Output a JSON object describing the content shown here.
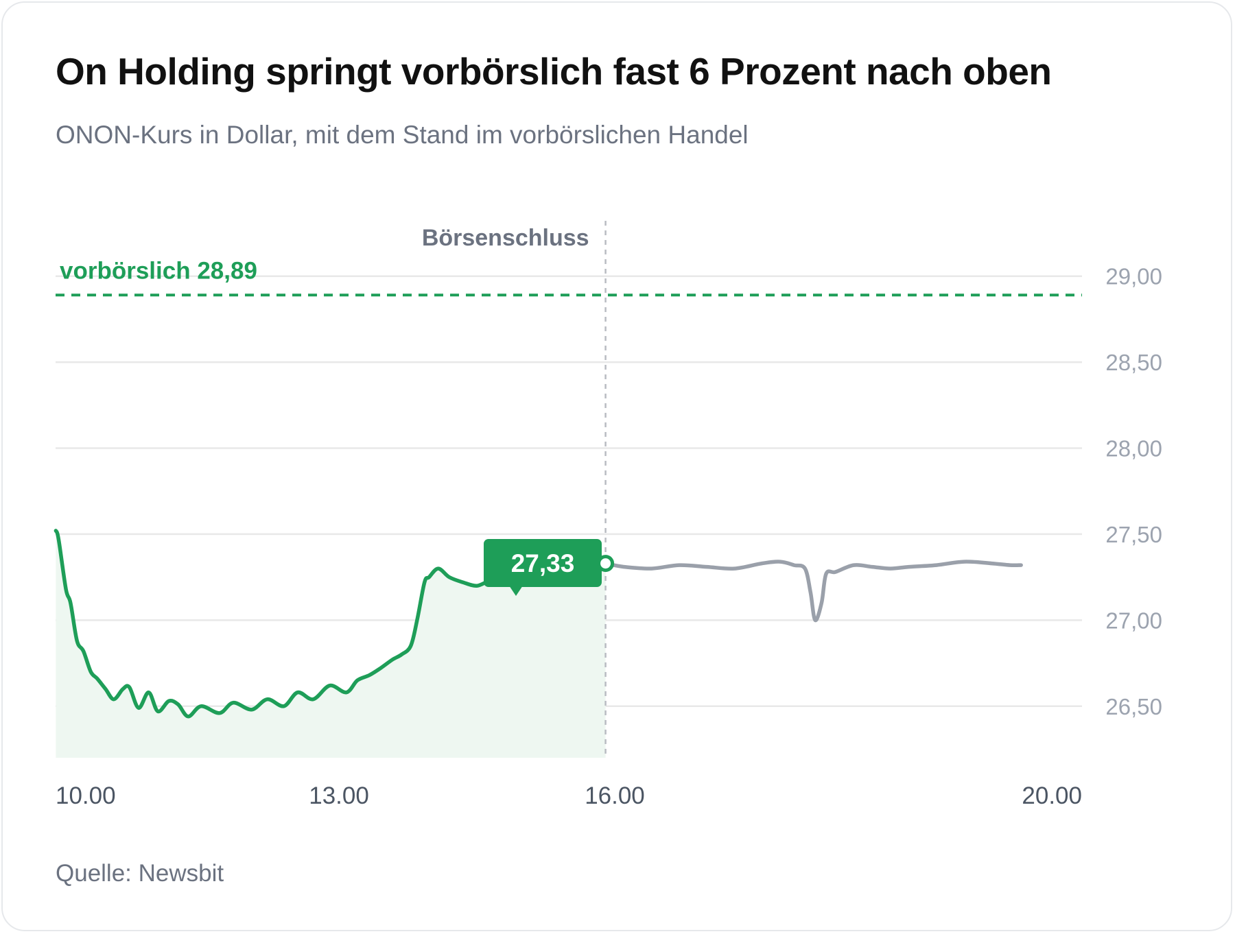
{
  "title": "On Holding springt vorbörslich fast 6 Prozent nach oben",
  "subtitle": "ONON-Kurs in Dollar, mit dem Stand im vorbörslichen Handel",
  "source": "Quelle: Newsbit",
  "colors": {
    "regular_session": "#1e9e58",
    "regular_fill": "#eef7f1",
    "after_hours": "#9aa0aa",
    "grid": "#e8e8e8",
    "close_marker": "#b9bcc2"
  },
  "chart_data": {
    "type": "line",
    "ylim": [
      26.2,
      29.25
    ],
    "xlim": [
      9.917,
      21.083
    ],
    "y_ticks": [
      {
        "value": 29.0,
        "label": "29,00"
      },
      {
        "value": 28.5,
        "label": "28,50"
      },
      {
        "value": 28.0,
        "label": "28,00"
      },
      {
        "value": 27.5,
        "label": "27,50"
      },
      {
        "value": 27.0,
        "label": "27,00"
      },
      {
        "value": 26.5,
        "label": "26,50"
      }
    ],
    "x_ticks": [
      {
        "value": 10.0,
        "label": "10.00"
      },
      {
        "value": 13.0,
        "label": "13.00"
      },
      {
        "value": 16.0,
        "label": "16.00"
      },
      {
        "value": 20.0,
        "label": "20.00"
      }
    ],
    "grid": true,
    "series": [
      {
        "points": [
          [
            9.92,
            27.52
          ],
          [
            9.95,
            27.47
          ],
          [
            10.03,
            27.18
          ],
          [
            10.08,
            27.1
          ],
          [
            10.15,
            26.88
          ],
          [
            10.22,
            26.82
          ],
          [
            10.3,
            26.7
          ],
          [
            10.37,
            26.66
          ],
          [
            10.46,
            26.6
          ],
          [
            10.55,
            26.54
          ],
          [
            10.65,
            26.6
          ],
          [
            10.72,
            26.61
          ],
          [
            10.82,
            26.49
          ],
          [
            10.93,
            26.58
          ],
          [
            11.03,
            26.47
          ],
          [
            11.15,
            26.53
          ],
          [
            11.25,
            26.51
          ],
          [
            11.36,
            26.44
          ],
          [
            11.5,
            26.5
          ],
          [
            11.7,
            26.46
          ],
          [
            11.85,
            26.52
          ],
          [
            12.05,
            26.48
          ],
          [
            12.22,
            26.54
          ],
          [
            12.4,
            26.5
          ],
          [
            12.55,
            26.58
          ],
          [
            12.72,
            26.54
          ],
          [
            12.9,
            26.62
          ],
          [
            13.08,
            26.58
          ],
          [
            13.2,
            26.65
          ],
          [
            13.33,
            26.68
          ],
          [
            13.45,
            26.72
          ],
          [
            13.58,
            26.77
          ],
          [
            13.68,
            26.8
          ],
          [
            13.78,
            26.85
          ],
          [
            13.85,
            27.0
          ],
          [
            13.93,
            27.22
          ],
          [
            13.98,
            27.25
          ],
          [
            14.08,
            27.3
          ],
          [
            14.2,
            27.25
          ],
          [
            14.35,
            27.22
          ],
          [
            14.5,
            27.2
          ],
          [
            14.65,
            27.23
          ],
          [
            14.8,
            27.22
          ],
          [
            15.0,
            27.24
          ],
          [
            15.2,
            27.27
          ],
          [
            15.4,
            27.29
          ],
          [
            15.6,
            27.32
          ],
          [
            15.75,
            27.32
          ],
          [
            15.9,
            27.33
          ]
        ]
      },
      {
        "points": [
          [
            15.9,
            27.33
          ],
          [
            16.1,
            27.31
          ],
          [
            16.4,
            27.3
          ],
          [
            16.7,
            27.32
          ],
          [
            17.0,
            27.31
          ],
          [
            17.3,
            27.3
          ],
          [
            17.6,
            27.33
          ],
          [
            17.8,
            27.34
          ],
          [
            17.95,
            27.32
          ],
          [
            18.07,
            27.3
          ],
          [
            18.13,
            27.16
          ],
          [
            18.18,
            27.0
          ],
          [
            18.25,
            27.1
          ],
          [
            18.3,
            27.27
          ],
          [
            18.4,
            27.28
          ],
          [
            18.6,
            27.32
          ],
          [
            18.8,
            27.31
          ],
          [
            19.0,
            27.3
          ],
          [
            19.2,
            27.31
          ],
          [
            19.5,
            27.32
          ],
          [
            19.8,
            27.34
          ],
          [
            20.1,
            27.33
          ],
          [
            20.3,
            27.32
          ],
          [
            20.42,
            27.32
          ]
        ]
      }
    ],
    "premarket": {
      "value": 28.89,
      "label": "vorbörslich 28,89"
    },
    "market_close": {
      "x": 15.9,
      "label": "Börsenschluss"
    },
    "last_close": {
      "x": 15.9,
      "value": 27.33,
      "label": "27,33"
    }
  }
}
